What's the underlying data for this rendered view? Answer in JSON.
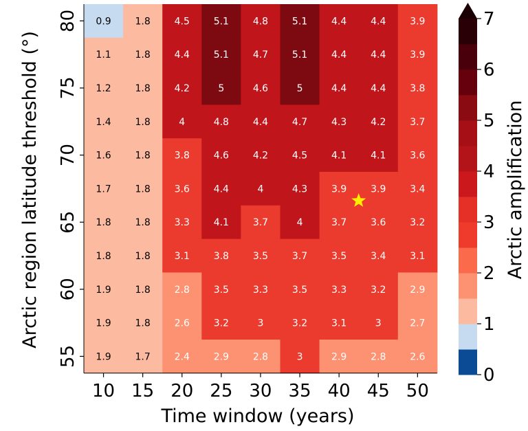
{
  "chart_data": {
    "type": "heatmap",
    "title": "",
    "xlabel": "Time window (years)",
    "ylabel": "Arctic region latitude threshold (°)",
    "x": [
      10,
      15,
      20,
      25,
      30,
      35,
      40,
      45,
      50
    ],
    "y": [
      80,
      77.5,
      75,
      72.5,
      70,
      67.5,
      65,
      62.5,
      60,
      57.5,
      55
    ],
    "y_tick_labels": [
      "80",
      "75",
      "70",
      "65",
      "60",
      "55"
    ],
    "y_tick_values": [
      80,
      75,
      70,
      65,
      60,
      55
    ],
    "x_tick_labels": [
      "10",
      "15",
      "20",
      "25",
      "30",
      "35",
      "40",
      "45",
      "50"
    ],
    "values": [
      [
        0.9,
        1.8,
        4.5,
        5.1,
        4.8,
        5.1,
        4.4,
        4.4,
        3.9
      ],
      [
        1.1,
        1.8,
        4.4,
        5.1,
        4.7,
        5.1,
        4.4,
        4.4,
        3.9
      ],
      [
        1.2,
        1.8,
        4.2,
        5,
        4.6,
        5,
        4.4,
        4.4,
        3.8
      ],
      [
        1.4,
        1.8,
        4,
        4.8,
        4.4,
        4.7,
        4.3,
        4.2,
        3.7
      ],
      [
        1.6,
        1.8,
        3.8,
        4.6,
        4.2,
        4.5,
        4.1,
        4.1,
        3.6
      ],
      [
        1.7,
        1.8,
        3.6,
        4.4,
        4,
        4.3,
        3.9,
        3.9,
        3.4
      ],
      [
        1.8,
        1.8,
        3.3,
        4.1,
        3.7,
        4,
        3.7,
        3.6,
        3.2
      ],
      [
        1.8,
        1.8,
        3.1,
        3.8,
        3.5,
        3.7,
        3.5,
        3.4,
        3.1
      ],
      [
        1.9,
        1.8,
        2.8,
        3.5,
        3.3,
        3.5,
        3.3,
        3.2,
        2.9
      ],
      [
        1.9,
        1.8,
        2.6,
        3.2,
        3,
        3.2,
        3.1,
        3,
        2.7
      ],
      [
        1.9,
        1.7,
        2.4,
        2.9,
        2.8,
        3,
        2.9,
        2.8,
        2.6
      ]
    ],
    "value_labels": [
      [
        "0.9",
        "1.8",
        "4.5",
        "5.1",
        "4.8",
        "5.1",
        "4.4",
        "4.4",
        "3.9"
      ],
      [
        "1.1",
        "1.8",
        "4.4",
        "5.1",
        "4.7",
        "5.1",
        "4.4",
        "4.4",
        "3.9"
      ],
      [
        "1.2",
        "1.8",
        "4.2",
        "5",
        "4.6",
        "5",
        "4.4",
        "4.4",
        "3.8"
      ],
      [
        "1.4",
        "1.8",
        "4",
        "4.8",
        "4.4",
        "4.7",
        "4.3",
        "4.2",
        "3.7"
      ],
      [
        "1.6",
        "1.8",
        "3.8",
        "4.6",
        "4.2",
        "4.5",
        "4.1",
        "4.1",
        "3.6"
      ],
      [
        "1.7",
        "1.8",
        "3.6",
        "4.4",
        "4",
        "4.3",
        "3.9",
        "3.9",
        "3.4"
      ],
      [
        "1.8",
        "1.8",
        "3.3",
        "4.1",
        "3.7",
        "4",
        "3.7",
        "3.6",
        "3.2"
      ],
      [
        "1.8",
        "1.8",
        "3.1",
        "3.8",
        "3.5",
        "3.7",
        "3.5",
        "3.4",
        "3.1"
      ],
      [
        "1.9",
        "1.8",
        "2.8",
        "3.5",
        "3.3",
        "3.5",
        "3.3",
        "3.2",
        "2.9"
      ],
      [
        "1.9",
        "1.8",
        "2.6",
        "3.2",
        "3",
        "3.2",
        "3.1",
        "3",
        "2.7"
      ],
      [
        "1.9",
        "1.7",
        "2.4",
        "2.9",
        "2.8",
        "3",
        "2.9",
        "2.8",
        "2.6"
      ]
    ],
    "marker": {
      "shape": "star",
      "color": "#ffee00",
      "x": 42.5,
      "y": 66.6
    },
    "colorbar": {
      "label": "Arctic amplification",
      "range": [
        0,
        7
      ],
      "extend": "max",
      "ticks": [
        "0",
        "1",
        "2",
        "3",
        "4",
        "5",
        "6",
        "7"
      ],
      "boundaries": [
        0,
        0.5,
        1,
        1.5,
        2,
        2.5,
        3,
        3.5,
        4,
        4.5,
        5,
        5.5,
        6,
        6.5,
        7
      ],
      "colors": [
        "#0b4b96",
        "#c6dbef",
        "#fcbba1",
        "#fc9272",
        "#fb6a4a",
        "#ef3b2c",
        "#e43027",
        "#cb181d",
        "#b31419",
        "#a50f15",
        "#8a0c12",
        "#67000d",
        "#4a000a",
        "#2a0007"
      ],
      "cell_colors": {
        "bins": [
          0.5,
          1,
          2,
          3,
          4,
          5,
          6
        ],
        "fills": [
          "#0b4b96",
          "#c6dbef",
          "#fcbba1",
          "#fc9272",
          "#ea3b2e",
          "#c0161b",
          "#7c0a10",
          "#2a0007"
        ]
      }
    },
    "grid": false
  }
}
